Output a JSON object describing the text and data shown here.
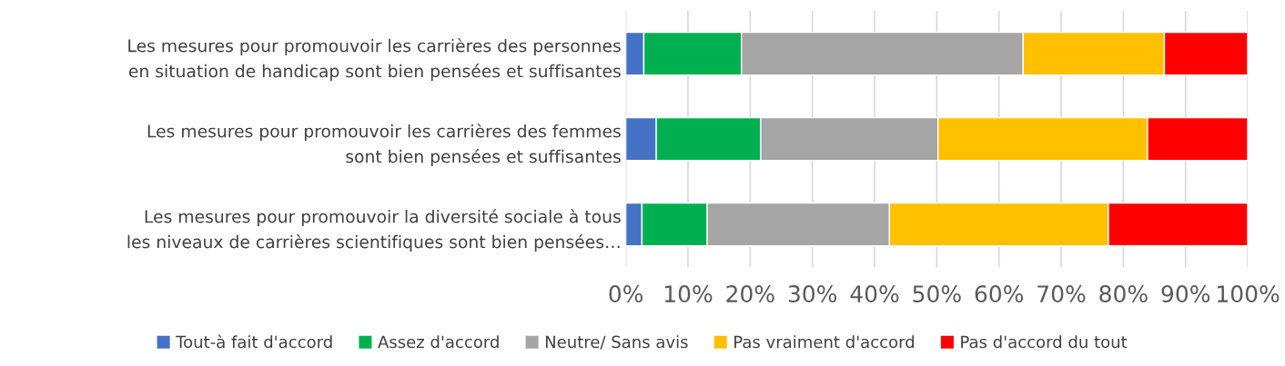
{
  "chart_data": {
    "type": "bar",
    "orientation": "horizontal",
    "stacked": true,
    "categories": [
      "Les mesures pour promouvoir les carrières des personnes\nen situation de handicap sont bien pensées et suffisantes",
      "Les mesures pour promouvoir les carrières des femmes\nsont bien pensées et suffisantes",
      "Les mesures pour promouvoir la diversité sociale à tous\nles niveaux de carrières scientifiques sont bien pensées…"
    ],
    "series": [
      {
        "name": "Tout-à fait d'accord",
        "color": "#4472c4",
        "values": [
          2.9,
          4.9,
          2.6
        ]
      },
      {
        "name": "Assez d'accord",
        "color": "#00b050",
        "values": [
          15.7,
          16.8,
          10.5
        ]
      },
      {
        "name": "Neutre/ Sans avis",
        "color": "#a5a5a5",
        "values": [
          45.3,
          28.5,
          29.3
        ]
      },
      {
        "name": "Pas vraiment d'accord",
        "color": "#ffc000",
        "values": [
          22.7,
          33.7,
          35.2
        ]
      },
      {
        "name": "Pas d'accord du tout",
        "color": "#ff0000",
        "values": [
          13.4,
          16.1,
          22.4
        ]
      }
    ],
    "xlim": [
      0,
      100
    ],
    "xticks": [
      {
        "value": 0,
        "label": "0%"
      },
      {
        "value": 10,
        "label": "10%"
      },
      {
        "value": 20,
        "label": "20%"
      },
      {
        "value": 30,
        "label": "30%"
      },
      {
        "value": 40,
        "label": "40%"
      },
      {
        "value": 50,
        "label": "50%"
      },
      {
        "value": 60,
        "label": "60%"
      },
      {
        "value": 70,
        "label": "70%"
      },
      {
        "value": 80,
        "label": "80%"
      },
      {
        "value": 90,
        "label": "90%"
      },
      {
        "value": 100,
        "label": "100%"
      }
    ],
    "grid": "x",
    "legend": "bottom"
  }
}
